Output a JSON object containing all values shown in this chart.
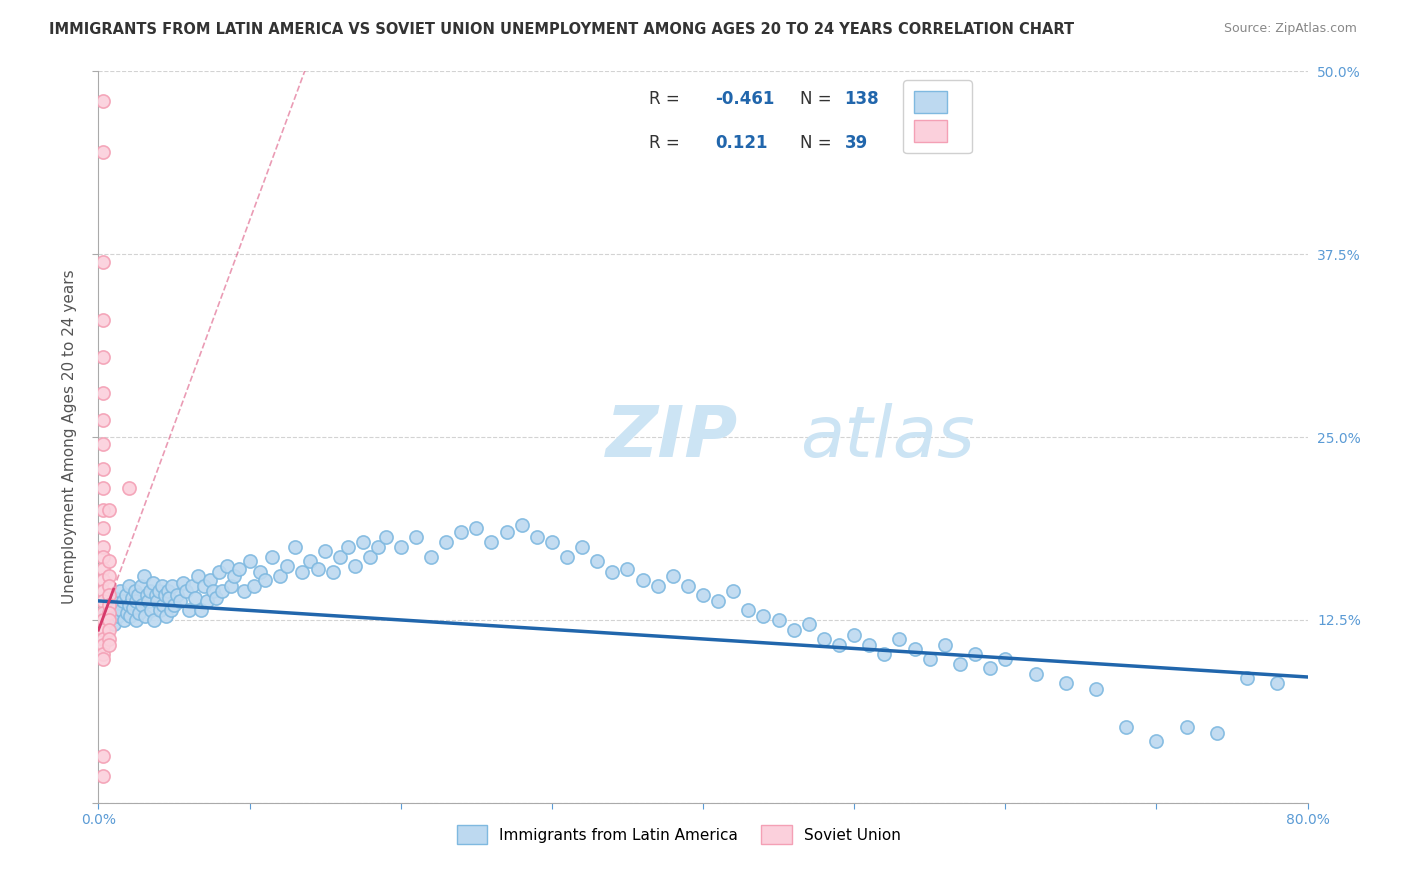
{
  "title": "IMMIGRANTS FROM LATIN AMERICA VS SOVIET UNION UNEMPLOYMENT AMONG AGES 20 TO 24 YEARS CORRELATION CHART",
  "source": "Source: ZipAtlas.com",
  "ylabel": "Unemployment Among Ages 20 to 24 years",
  "xlim": [
    0.0,
    0.8
  ],
  "ylim": [
    0.0,
    0.5
  ],
  "xticks": [
    0.0,
    0.1,
    0.2,
    0.3,
    0.4,
    0.5,
    0.6,
    0.7,
    0.8
  ],
  "yticks": [
    0.0,
    0.125,
    0.25,
    0.375,
    0.5
  ],
  "blue_color": "#7fb9e0",
  "blue_fill": "#bdd9f0",
  "pink_color": "#f4a0b5",
  "pink_fill": "#fbd0dc",
  "blue_line_color": "#2166ac",
  "pink_line_color": "#d6396b",
  "grid_color": "#d3d3d3",
  "watermark_zip": "ZIP",
  "watermark_atlas": "atlas",
  "legend_R_blue": "-0.461",
  "legend_N_blue": "138",
  "legend_R_pink": "0.121",
  "legend_N_pink": "39",
  "blue_slope": -0.065,
  "blue_intercept": 0.138,
  "pink_slope": 2.8,
  "pink_intercept": 0.118,
  "blue_x": [
    0.005,
    0.006,
    0.007,
    0.008,
    0.009,
    0.01,
    0.01,
    0.011,
    0.012,
    0.013,
    0.014,
    0.015,
    0.016,
    0.017,
    0.018,
    0.019,
    0.02,
    0.02,
    0.021,
    0.022,
    0.023,
    0.024,
    0.025,
    0.025,
    0.026,
    0.027,
    0.028,
    0.029,
    0.03,
    0.031,
    0.032,
    0.033,
    0.034,
    0.035,
    0.036,
    0.037,
    0.038,
    0.039,
    0.04,
    0.041,
    0.042,
    0.043,
    0.044,
    0.045,
    0.046,
    0.047,
    0.048,
    0.049,
    0.05,
    0.052,
    0.054,
    0.056,
    0.058,
    0.06,
    0.062,
    0.064,
    0.066,
    0.068,
    0.07,
    0.072,
    0.074,
    0.076,
    0.078,
    0.08,
    0.082,
    0.085,
    0.088,
    0.09,
    0.093,
    0.096,
    0.1,
    0.103,
    0.107,
    0.11,
    0.115,
    0.12,
    0.125,
    0.13,
    0.135,
    0.14,
    0.145,
    0.15,
    0.155,
    0.16,
    0.165,
    0.17,
    0.175,
    0.18,
    0.185,
    0.19,
    0.2,
    0.21,
    0.22,
    0.23,
    0.24,
    0.25,
    0.26,
    0.27,
    0.28,
    0.29,
    0.3,
    0.31,
    0.32,
    0.33,
    0.34,
    0.35,
    0.36,
    0.37,
    0.38,
    0.39,
    0.4,
    0.41,
    0.42,
    0.43,
    0.44,
    0.45,
    0.46,
    0.47,
    0.48,
    0.49,
    0.5,
    0.51,
    0.52,
    0.53,
    0.54,
    0.55,
    0.56,
    0.57,
    0.58,
    0.59,
    0.6,
    0.62,
    0.64,
    0.66,
    0.68,
    0.7,
    0.72,
    0.74,
    0.76,
    0.78
  ],
  "blue_y": [
    0.13,
    0.125,
    0.132,
    0.128,
    0.135,
    0.14,
    0.122,
    0.138,
    0.133,
    0.128,
    0.145,
    0.132,
    0.138,
    0.125,
    0.142,
    0.13,
    0.135,
    0.148,
    0.128,
    0.14,
    0.133,
    0.145,
    0.138,
    0.125,
    0.142,
    0.13,
    0.148,
    0.135,
    0.155,
    0.128,
    0.142,
    0.138,
    0.145,
    0.132,
    0.15,
    0.125,
    0.142,
    0.138,
    0.145,
    0.132,
    0.148,
    0.135,
    0.142,
    0.128,
    0.145,
    0.14,
    0.132,
    0.148,
    0.135,
    0.142,
    0.138,
    0.15,
    0.145,
    0.132,
    0.148,
    0.14,
    0.155,
    0.132,
    0.148,
    0.138,
    0.152,
    0.145,
    0.14,
    0.158,
    0.145,
    0.162,
    0.148,
    0.155,
    0.16,
    0.145,
    0.165,
    0.148,
    0.158,
    0.152,
    0.168,
    0.155,
    0.162,
    0.175,
    0.158,
    0.165,
    0.16,
    0.172,
    0.158,
    0.168,
    0.175,
    0.162,
    0.178,
    0.168,
    0.175,
    0.182,
    0.175,
    0.182,
    0.168,
    0.178,
    0.185,
    0.188,
    0.178,
    0.185,
    0.19,
    0.182,
    0.178,
    0.168,
    0.175,
    0.165,
    0.158,
    0.16,
    0.152,
    0.148,
    0.155,
    0.148,
    0.142,
    0.138,
    0.145,
    0.132,
    0.128,
    0.125,
    0.118,
    0.122,
    0.112,
    0.108,
    0.115,
    0.108,
    0.102,
    0.112,
    0.105,
    0.098,
    0.108,
    0.095,
    0.102,
    0.092,
    0.098,
    0.088,
    0.082,
    0.078,
    0.052,
    0.042,
    0.052,
    0.048,
    0.085,
    0.082
  ],
  "pink_x": [
    0.003,
    0.003,
    0.003,
    0.003,
    0.003,
    0.003,
    0.003,
    0.003,
    0.003,
    0.003,
    0.003,
    0.003,
    0.003,
    0.003,
    0.003,
    0.003,
    0.003,
    0.003,
    0.003,
    0.003,
    0.003,
    0.003,
    0.003,
    0.003,
    0.003,
    0.003,
    0.003,
    0.007,
    0.007,
    0.007,
    0.007,
    0.007,
    0.007,
    0.007,
    0.007,
    0.007,
    0.007,
    0.007,
    0.02
  ],
  "pink_y": [
    0.48,
    0.445,
    0.37,
    0.33,
    0.305,
    0.28,
    0.262,
    0.245,
    0.228,
    0.215,
    0.2,
    0.188,
    0.175,
    0.168,
    0.16,
    0.152,
    0.145,
    0.138,
    0.13,
    0.125,
    0.118,
    0.112,
    0.108,
    0.102,
    0.098,
    0.032,
    0.018,
    0.165,
    0.155,
    0.148,
    0.142,
    0.135,
    0.13,
    0.125,
    0.118,
    0.112,
    0.108,
    0.2,
    0.215
  ]
}
